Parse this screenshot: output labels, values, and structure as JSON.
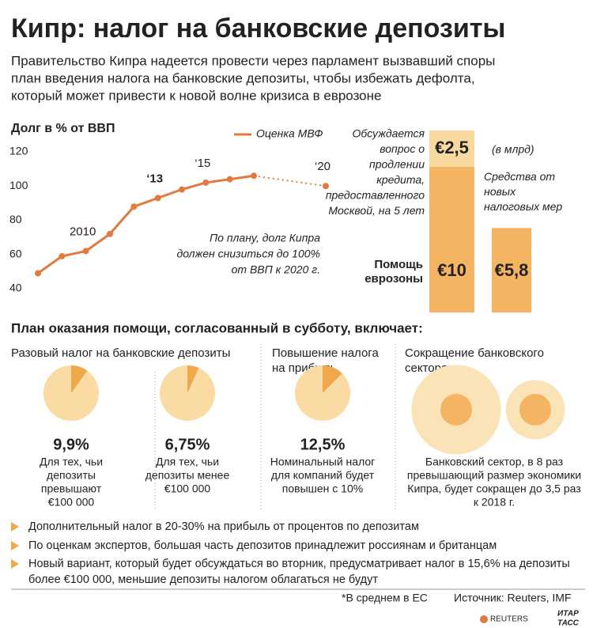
{
  "header": {
    "title": "Кипр: налог на банковские депозиты",
    "subtitle": [
      "Правительство Кипра надеется провести через парламент вызвавший споры",
      "план введения налога на банковские депозиты, чтобы избежать дефолта,",
      "который может привести к новой волне кризиса в еврозоне"
    ]
  },
  "chart_data": [
    {
      "type": "line",
      "title": "Долг в % от ВВП",
      "x": [
        2008,
        2009,
        2010,
        2011,
        2012,
        2013,
        2014,
        2015,
        2016,
        2017,
        2020
      ],
      "series": [
        {
          "name": "Оценка МВФ",
          "color": "#e07a3f",
          "values": [
            49,
            59,
            62,
            72,
            88,
            93,
            98,
            102,
            104,
            106,
            100
          ]
        }
      ],
      "xlim": [
        2008,
        2020
      ],
      "xticks": [
        {
          "value": 2010,
          "label": "2010"
        },
        {
          "value": 2013,
          "label": "‘13"
        },
        {
          "value": 2015,
          "label": "‘15"
        },
        {
          "value": 2020,
          "label": "‘20"
        }
      ],
      "ylim": [
        40,
        120
      ],
      "yticks": [
        40,
        60,
        80,
        100,
        120
      ],
      "annotation": [
        "По плану, долг Кипра",
        "должен снизиться до 100%",
        "от ВВП к 2020 г."
      ]
    },
    {
      "type": "bar",
      "unit_note": "(в млрд)",
      "bars": [
        {
          "segments": [
            {
              "value": 10,
              "value_label": "€10",
              "label": [
                "Помощь",
                "еврозоны"
              ],
              "color": "#f5b461"
            },
            {
              "value": 2.5,
              "value_label": "€2,5",
              "label": [
                "Обсуждается",
                "вопрос о",
                "продлении",
                "кредита,",
                "предоставленного",
                "Москвой, на 5 лет"
              ],
              "color": "#fad9a0"
            }
          ]
        },
        {
          "segments": [
            {
              "value": 5.8,
              "value_label": "€5,8",
              "label": [
                "Средства от",
                "новых",
                "налоговых мер"
              ],
              "color": "#f5b461"
            }
          ]
        }
      ]
    },
    {
      "type": "pie",
      "title": "Разовый налог на банковские депозиты",
      "pies": [
        {
          "value": 9.9,
          "value_label": "9,9%",
          "caption": [
            "Для тех, чьи",
            "депозиты",
            "превышают",
            "€100 000"
          ]
        },
        {
          "value": 6.75,
          "value_label": "6,75%",
          "caption": [
            "Для тех, чьи",
            "депозиты менее",
            "€100 000"
          ]
        }
      ]
    },
    {
      "type": "pie",
      "title": [
        "Повышение налога",
        "на прибыль"
      ],
      "pies": [
        {
          "value": 12.5,
          "value_label": "12,5%",
          "caption": [
            "Номинальный налог",
            "для компаний будет",
            "повышен с 10%"
          ]
        }
      ]
    },
    {
      "type": "circles",
      "title": [
        "Сокращение банковского",
        "сектора"
      ],
      "values": [
        8,
        3.5
      ],
      "caption": [
        "Банковский сектор, в 8 раз",
        "превышающий размер экономики",
        "Кипра, будет сокращен до 3,5 раз",
        "к 2018 г."
      ]
    }
  ],
  "plan": {
    "heading": "План оказания помощи, согласованный в субботу, включает:"
  },
  "bullets": [
    [
      "Дополнительный налог в 20-30% на прибыль от процентов по депозитам"
    ],
    [
      "По оценкам экспертов, большая часть депозитов принадлежит россиянам и британцам"
    ],
    [
      "Новый вариант, который будет обсуждаться во вторник, предусматривает налог в 15,6%  на депозиты",
      "более €100 000, меньшие депозиты налогом облагаться не будут"
    ]
  ],
  "footer": {
    "footnote": "*В среднем в ЕС",
    "source": "Источник: Reuters, IMF",
    "logos": [
      "REUTERS",
      "ИТАР",
      "ТАСС"
    ]
  }
}
